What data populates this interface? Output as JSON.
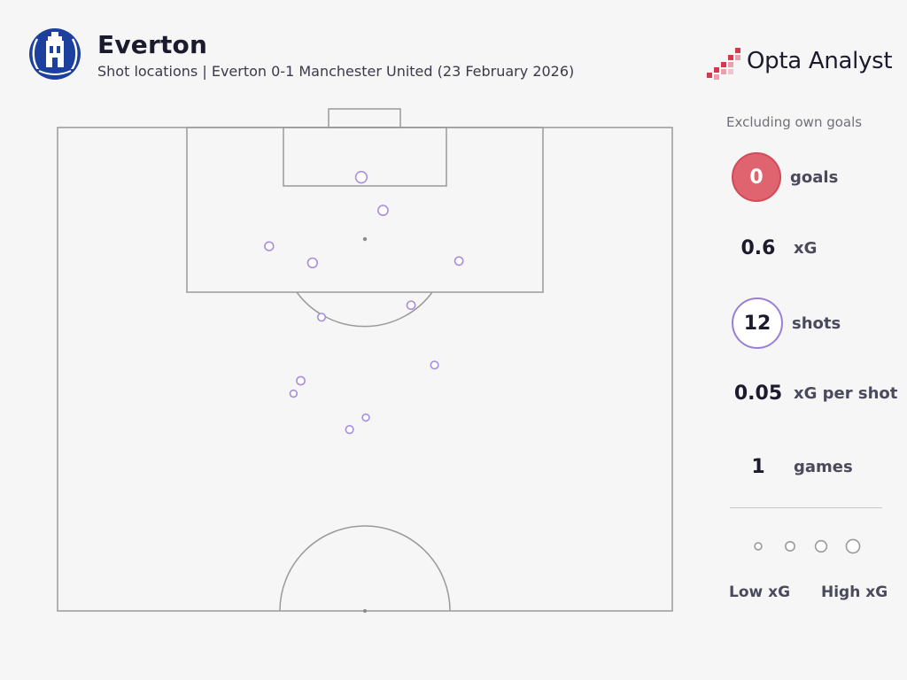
{
  "header": {
    "title": "Everton",
    "subtitle": "Shot locations | Everton 0-1 Manchester United (23 February 2026)",
    "brand": "Opta Analyst",
    "crest_icon": "everton-crest-icon",
    "brand_icon": "opta-analyst-logo-icon"
  },
  "colors": {
    "background": "#f6f6f6",
    "pitch_lines": "#9a9a9a",
    "shot": "#a88ee0",
    "goals_fill": "#e06470",
    "shots_ring": "#9b7fd4",
    "crest": "#1d3f9e",
    "brand_accent": "#d6384e"
  },
  "chart_data": {
    "type": "scatter",
    "pitch": "half-pitch, vertical, attacking goal at top",
    "x_axis": "pitch width in metres (0 = left touchline, 68 = right touchline)",
    "y_axis": "distance from goal line in metres (0 = goal line, 52.5 = halfway line)",
    "xlim": [
      0,
      68
    ],
    "ylim": [
      0,
      52.5
    ],
    "shots": [
      {
        "x": 33.6,
        "y": 5.4,
        "xg": 0.12
      },
      {
        "x": 36.0,
        "y": 9.0,
        "xg": 0.08
      },
      {
        "x": 23.4,
        "y": 12.9,
        "xg": 0.05
      },
      {
        "x": 28.2,
        "y": 14.7,
        "xg": 0.07
      },
      {
        "x": 44.4,
        "y": 14.5,
        "xg": 0.04
      },
      {
        "x": 39.1,
        "y": 19.3,
        "xg": 0.04
      },
      {
        "x": 29.2,
        "y": 20.6,
        "xg": 0.03
      },
      {
        "x": 41.7,
        "y": 25.8,
        "xg": 0.03
      },
      {
        "x": 26.9,
        "y": 27.5,
        "xg": 0.04
      },
      {
        "x": 26.1,
        "y": 28.9,
        "xg": 0.02
      },
      {
        "x": 34.1,
        "y": 31.5,
        "xg": 0.02
      },
      {
        "x": 32.3,
        "y": 32.8,
        "xg": 0.03
      }
    ]
  },
  "sidebar": {
    "note": "Excluding own goals",
    "goals": {
      "value": "0",
      "label": "goals"
    },
    "xg": {
      "value": "0.6",
      "label": "xG"
    },
    "shots": {
      "value": "12",
      "label": "shots"
    },
    "xg_per_shot": {
      "value": "0.05",
      "label": "xG per shot"
    },
    "games": {
      "value": "1",
      "label": "games"
    }
  },
  "legend": {
    "low": "Low xG",
    "high": "High xG",
    "sizes_xg": [
      0.02,
      0.06,
      0.12,
      0.2
    ]
  }
}
